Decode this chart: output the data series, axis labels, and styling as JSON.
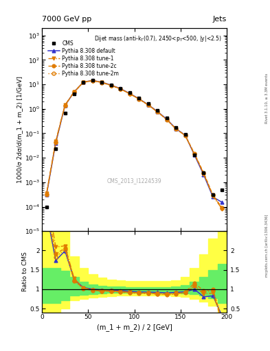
{
  "title_left": "7000 GeV pp",
  "title_right": "Jets",
  "right_label_top": "Rivet 3.1.10, ≥ 3.3M events",
  "right_label_bottom": "mcplots.cern.ch [arXiv:1306.3436]",
  "cms_label": "CMS_2013_I1224539",
  "plot_title": "Dijet mass (anti-k$_{T}$(0.7), 2450<p$_{T}$<500, |y|<2.5)",
  "xlabel": "(m_1 + m_2) / 2 [GeV]",
  "ylabel": "1000/σ 2dσ/d(m_1 + m_2) [1/GeV]",
  "ylabel_ratio": "Ratio to CMS",
  "xlim": [
    0,
    200
  ],
  "ylim_log": [
    1e-05,
    2000
  ],
  "ylim_ratio": [
    0.4,
    2.5
  ],
  "cms_x": [
    5,
    15,
    25,
    35,
    45,
    55,
    65,
    75,
    85,
    95,
    105,
    115,
    125,
    135,
    145,
    155,
    165,
    175,
    185,
    195
  ],
  "cms_y": [
    0.0001,
    0.023,
    0.68,
    4.0,
    12.0,
    14.5,
    12.5,
    9.5,
    7.0,
    4.5,
    2.8,
    1.6,
    0.85,
    0.42,
    0.17,
    0.09,
    0.013,
    0.0025,
    0.0003,
    0.0005
  ],
  "pythia_default_x": [
    5,
    15,
    25,
    35,
    45,
    55,
    65,
    75,
    85,
    95,
    105,
    115,
    125,
    135,
    145,
    155,
    165,
    175,
    185,
    195
  ],
  "pythia_default_y": [
    0.0003,
    0.04,
    1.35,
    5.0,
    12.5,
    14.5,
    12.3,
    9.3,
    6.75,
    4.25,
    2.6,
    1.48,
    0.78,
    0.38,
    0.156,
    0.084,
    0.013,
    0.002,
    0.00025,
    0.00015
  ],
  "pythia_tune1_x": [
    5,
    15,
    25,
    35,
    45,
    55,
    65,
    75,
    85,
    95,
    105,
    115,
    125,
    135,
    145,
    155,
    165,
    175,
    185,
    195
  ],
  "pythia_tune1_y": [
    0.00035,
    0.048,
    1.44,
    5.1,
    12.4,
    14.3,
    12.1,
    9.1,
    6.6,
    4.15,
    2.55,
    1.45,
    0.76,
    0.37,
    0.153,
    0.081,
    0.014,
    0.0022,
    0.00027,
    8e-05
  ],
  "pythia_tune2c_x": [
    5,
    15,
    25,
    35,
    45,
    55,
    65,
    75,
    85,
    95,
    105,
    115,
    125,
    135,
    145,
    155,
    165,
    175,
    185,
    195
  ],
  "pythia_tune2c_y": [
    0.00032,
    0.044,
    1.4,
    4.9,
    12.2,
    14.1,
    11.9,
    9.0,
    6.5,
    4.1,
    2.52,
    1.43,
    0.745,
    0.365,
    0.15,
    0.083,
    0.015,
    0.0024,
    0.0003,
    9e-05
  ],
  "pythia_tune2m_x": [
    5,
    15,
    25,
    35,
    45,
    55,
    65,
    75,
    85,
    95,
    105,
    115,
    125,
    135,
    145,
    155,
    165,
    175,
    185,
    195
  ],
  "pythia_tune2m_y": [
    0.0003,
    0.042,
    1.38,
    4.85,
    12.1,
    14.0,
    11.8,
    8.95,
    6.45,
    4.07,
    2.5,
    1.42,
    0.74,
    0.362,
    0.148,
    0.082,
    0.014,
    0.0023,
    0.00029,
    8.5e-05
  ],
  "ratio_default_y": [
    3.0,
    1.74,
    1.99,
    1.25,
    1.04,
    1.0,
    0.984,
    0.979,
    0.964,
    0.944,
    0.929,
    0.925,
    0.918,
    0.905,
    0.918,
    0.933,
    1.0,
    0.8,
    0.83,
    0.3
  ],
  "ratio_tune1_y": [
    3.5,
    2.09,
    2.12,
    1.275,
    1.033,
    0.986,
    0.968,
    0.958,
    0.943,
    0.922,
    0.911,
    0.906,
    0.894,
    0.881,
    0.9,
    0.9,
    1.077,
    0.88,
    0.9,
    0.16
  ],
  "ratio_tune2c_y": [
    3.2,
    1.91,
    2.06,
    1.225,
    1.017,
    0.972,
    0.952,
    0.947,
    0.929,
    0.911,
    0.9,
    0.894,
    0.876,
    0.869,
    0.882,
    0.922,
    1.154,
    0.96,
    1.0,
    0.18
  ],
  "ratio_tune2m_y": [
    3.0,
    1.83,
    2.03,
    1.213,
    1.008,
    0.966,
    0.944,
    0.942,
    0.921,
    0.904,
    0.893,
    0.888,
    0.871,
    0.862,
    0.871,
    0.911,
    1.077,
    0.92,
    0.967,
    0.17
  ],
  "error_band_x": [
    0,
    10,
    20,
    30,
    40,
    50,
    60,
    70,
    80,
    90,
    100,
    110,
    120,
    130,
    140,
    150,
    160,
    170,
    180,
    190,
    200
  ],
  "error_band_yellow_lo": [
    0.42,
    0.42,
    0.5,
    0.72,
    0.74,
    0.78,
    0.8,
    0.82,
    0.83,
    0.83,
    0.83,
    0.83,
    0.83,
    0.83,
    0.82,
    0.8,
    0.75,
    0.68,
    0.58,
    0.42,
    0.42
  ],
  "error_band_yellow_hi": [
    2.5,
    2.5,
    2.5,
    1.85,
    1.55,
    1.38,
    1.3,
    1.24,
    1.22,
    1.21,
    1.21,
    1.21,
    1.21,
    1.21,
    1.22,
    1.32,
    1.55,
    1.9,
    2.3,
    2.5,
    2.5
  ],
  "error_band_green_lo": [
    0.65,
    0.65,
    0.72,
    0.83,
    0.86,
    0.88,
    0.89,
    0.9,
    0.9,
    0.9,
    0.9,
    0.9,
    0.9,
    0.9,
    0.9,
    0.89,
    0.87,
    0.83,
    0.77,
    0.65,
    0.65
  ],
  "error_band_green_hi": [
    1.55,
    1.55,
    1.48,
    1.32,
    1.19,
    1.12,
    1.09,
    1.07,
    1.06,
    1.055,
    1.055,
    1.055,
    1.055,
    1.055,
    1.06,
    1.1,
    1.19,
    1.32,
    1.5,
    1.65,
    1.65
  ],
  "color_blue": "#3333cc",
  "color_orange": "#e07b00",
  "color_green_band": "#66ee66",
  "color_yellow_band": "#ffff44",
  "bg_color": "#ffffff"
}
